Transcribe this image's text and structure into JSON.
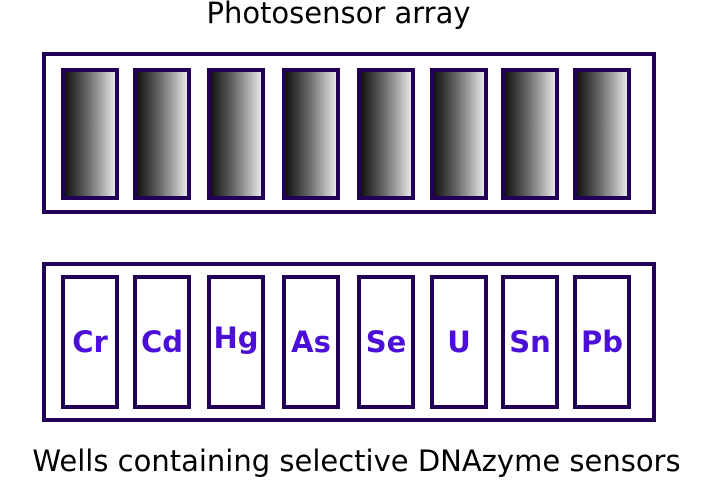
{
  "title": "Photosensor array",
  "caption": "Wells containing selective DNAzyme sensors",
  "colors": {
    "frame": "#220055",
    "well_label": "#4b0fd8",
    "sensor_gradient": [
      "#111111",
      "#e6e6e6"
    ]
  },
  "sensors": [
    "",
    "",
    "",
    "",
    "",
    "",
    "",
    ""
  ],
  "wells": [
    {
      "label": "Cr"
    },
    {
      "label": "Cd"
    },
    {
      "label": "Hg"
    },
    {
      "label": "As"
    },
    {
      "label": "Se"
    },
    {
      "label": "U"
    },
    {
      "label": "Sn"
    },
    {
      "label": "Pb"
    }
  ]
}
